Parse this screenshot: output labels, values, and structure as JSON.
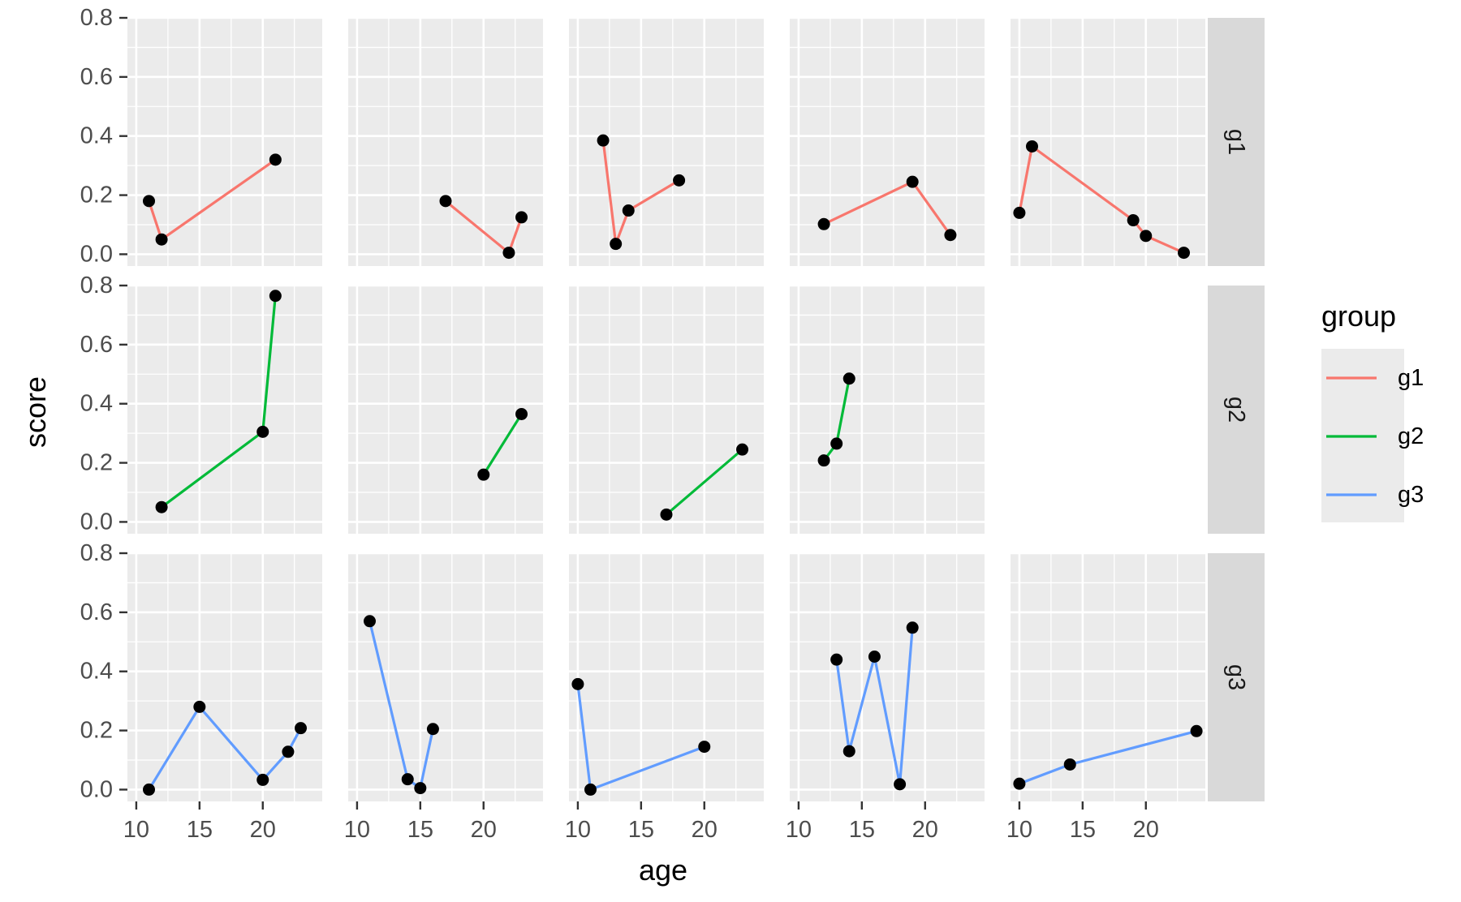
{
  "chart_data": {
    "type": "line",
    "xlabel": "age",
    "ylabel": "score",
    "xlim": [
      9.3,
      24.7
    ],
    "ylim": [
      -0.04,
      0.8
    ],
    "x_ticks": [
      10,
      15,
      20
    ],
    "y_ticks": [
      0.0,
      0.2,
      0.4,
      0.6,
      0.8
    ],
    "x_tick_labels": [
      "10",
      "15",
      "20"
    ],
    "y_tick_labels": [
      "0.0",
      "0.2",
      "0.4",
      "0.6",
      "0.8"
    ],
    "grid": true,
    "facet_rows": [
      "g1",
      "g2",
      "g3"
    ],
    "facet_cols": 5,
    "legend": {
      "title": "group",
      "position": "right",
      "entries": [
        {
          "name": "g1",
          "color": "#F8766D"
        },
        {
          "name": "g2",
          "color": "#00BA38"
        },
        {
          "name": "g3",
          "color": "#619CFF"
        }
      ]
    },
    "point_color": "#000000",
    "panels": [
      {
        "row": "g1",
        "col": 1,
        "points": [
          [
            11,
            0.18
          ],
          [
            12,
            0.05
          ],
          [
            21,
            0.32
          ]
        ]
      },
      {
        "row": "g1",
        "col": 2,
        "points": [
          [
            17,
            0.18
          ],
          [
            22,
            0.005
          ],
          [
            23,
            0.125
          ]
        ]
      },
      {
        "row": "g1",
        "col": 3,
        "points": [
          [
            12,
            0.385
          ],
          [
            13,
            0.035
          ],
          [
            14,
            0.148
          ],
          [
            18,
            0.25
          ]
        ]
      },
      {
        "row": "g1",
        "col": 4,
        "points": [
          [
            12,
            0.102
          ],
          [
            19,
            0.245
          ],
          [
            22,
            0.065
          ]
        ]
      },
      {
        "row": "g1",
        "col": 5,
        "points": [
          [
            10,
            0.14
          ],
          [
            11,
            0.365
          ],
          [
            19,
            0.115
          ],
          [
            20,
            0.062
          ],
          [
            23,
            0.005
          ]
        ]
      },
      {
        "row": "g2",
        "col": 1,
        "points": [
          [
            12,
            0.05
          ],
          [
            20,
            0.305
          ],
          [
            21,
            0.765
          ]
        ]
      },
      {
        "row": "g2",
        "col": 2,
        "points": [
          [
            20,
            0.16
          ],
          [
            23,
            0.365
          ]
        ]
      },
      {
        "row": "g2",
        "col": 3,
        "points": [
          [
            17,
            0.025
          ],
          [
            23,
            0.245
          ]
        ]
      },
      {
        "row": "g2",
        "col": 4,
        "points": [
          [
            12,
            0.208
          ],
          [
            13,
            0.265
          ],
          [
            14,
            0.485
          ]
        ]
      },
      {
        "row": "g3",
        "col": 1,
        "points": [
          [
            11,
            0.0
          ],
          [
            15,
            0.28
          ],
          [
            20,
            0.033
          ],
          [
            22,
            0.128
          ],
          [
            23,
            0.208
          ]
        ]
      },
      {
        "row": "g3",
        "col": 2,
        "points": [
          [
            11,
            0.57
          ],
          [
            14,
            0.035
          ],
          [
            15,
            0.005
          ],
          [
            16,
            0.205
          ]
        ]
      },
      {
        "row": "g3",
        "col": 3,
        "points": [
          [
            10,
            0.357
          ],
          [
            11,
            0.0
          ],
          [
            20,
            0.145
          ]
        ]
      },
      {
        "row": "g3",
        "col": 4,
        "points": [
          [
            13,
            0.44
          ],
          [
            14,
            0.13
          ],
          [
            16,
            0.45
          ],
          [
            18,
            0.018
          ],
          [
            19,
            0.548
          ]
        ]
      },
      {
        "row": "g3",
        "col": 5,
        "points": [
          [
            10,
            0.02
          ],
          [
            14,
            0.085
          ],
          [
            24,
            0.198
          ]
        ]
      }
    ]
  }
}
